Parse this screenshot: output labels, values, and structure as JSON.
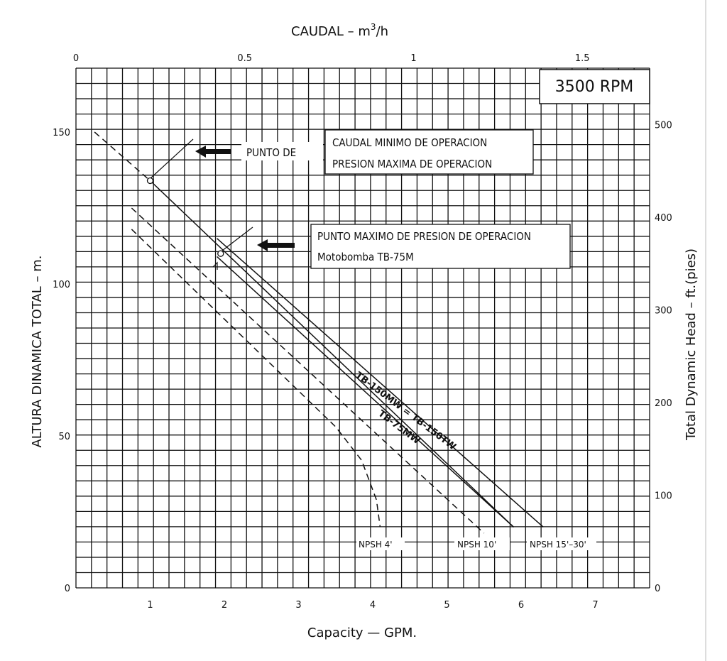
{
  "chart_data": {
    "type": "line",
    "rpm_label": "3500 RPM",
    "top_axis": {
      "label_text": "CAUDAL  – m",
      "label_sup": "3",
      "label_tail": "/h",
      "ticks": [
        "0",
        "0.5",
        "1",
        "1.5"
      ],
      "range": [
        0,
        1.77
      ]
    },
    "bottom_axis": {
      "label": "Capacity  —  GPM.",
      "ticks": [
        "1",
        "2",
        "3",
        "4",
        "5",
        "6",
        "7"
      ],
      "range": [
        0,
        7.8
      ]
    },
    "left_axis": {
      "label": "ALTURA DINAMICA TOTAL  –  m.",
      "ticks": [
        "0",
        "50",
        "100",
        "150"
      ],
      "range": [
        0,
        171
      ]
    },
    "right_axis": {
      "label": "Total Dynamic Head  –  ft.(pies)",
      "ticks": [
        "0",
        "100",
        "200",
        "300",
        "400",
        "500"
      ],
      "range": [
        0,
        561
      ]
    },
    "grid": true,
    "series": [
      {
        "name": "TB-150MW = TB-150TW",
        "style": "solid",
        "x": [
          1.9,
          6.3
        ],
        "y": [
          115,
          20
        ]
      },
      {
        "name": "TB-75MW",
        "style": "solid",
        "x": [
          1.9,
          5.9
        ],
        "y": [
          109,
          20
        ]
      },
      {
        "name": "",
        "style": "dashed",
        "x": [
          0.25,
          1.0
        ],
        "y": [
          150,
          134
        ]
      },
      {
        "name": "",
        "style": "dashed",
        "x": [
          0.75,
          5.5
        ],
        "y": [
          125,
          18
        ]
      },
      {
        "name": "",
        "style": "dashed",
        "x": [
          0.75,
          3.5,
          3.85,
          4.05,
          4.1
        ],
        "y": [
          118,
          53,
          42,
          29,
          20
        ]
      }
    ],
    "main_curve_solid": {
      "x": [
        1.0,
        5.9
      ],
      "y": [
        134,
        20
      ]
    },
    "npsh_labels": [
      "NPSH 4'",
      "NPSH 10'",
      "NPSH 15'–30'"
    ],
    "annotations": {
      "box1_line1": "CAUDAL MINIMO DE OPERACION",
      "box1_line2": "PRESION MAXIMA DE OPERACION",
      "arrow1_text": "PUNTO DE",
      "box2_line1": "PUNTO MAXIMO DE PRESION DE OPERACION",
      "box2_line2": "Motobomba TB-75M"
    },
    "points": [
      {
        "x": 1.0,
        "y": 134
      },
      {
        "x": 1.95,
        "y": 110
      }
    ]
  }
}
